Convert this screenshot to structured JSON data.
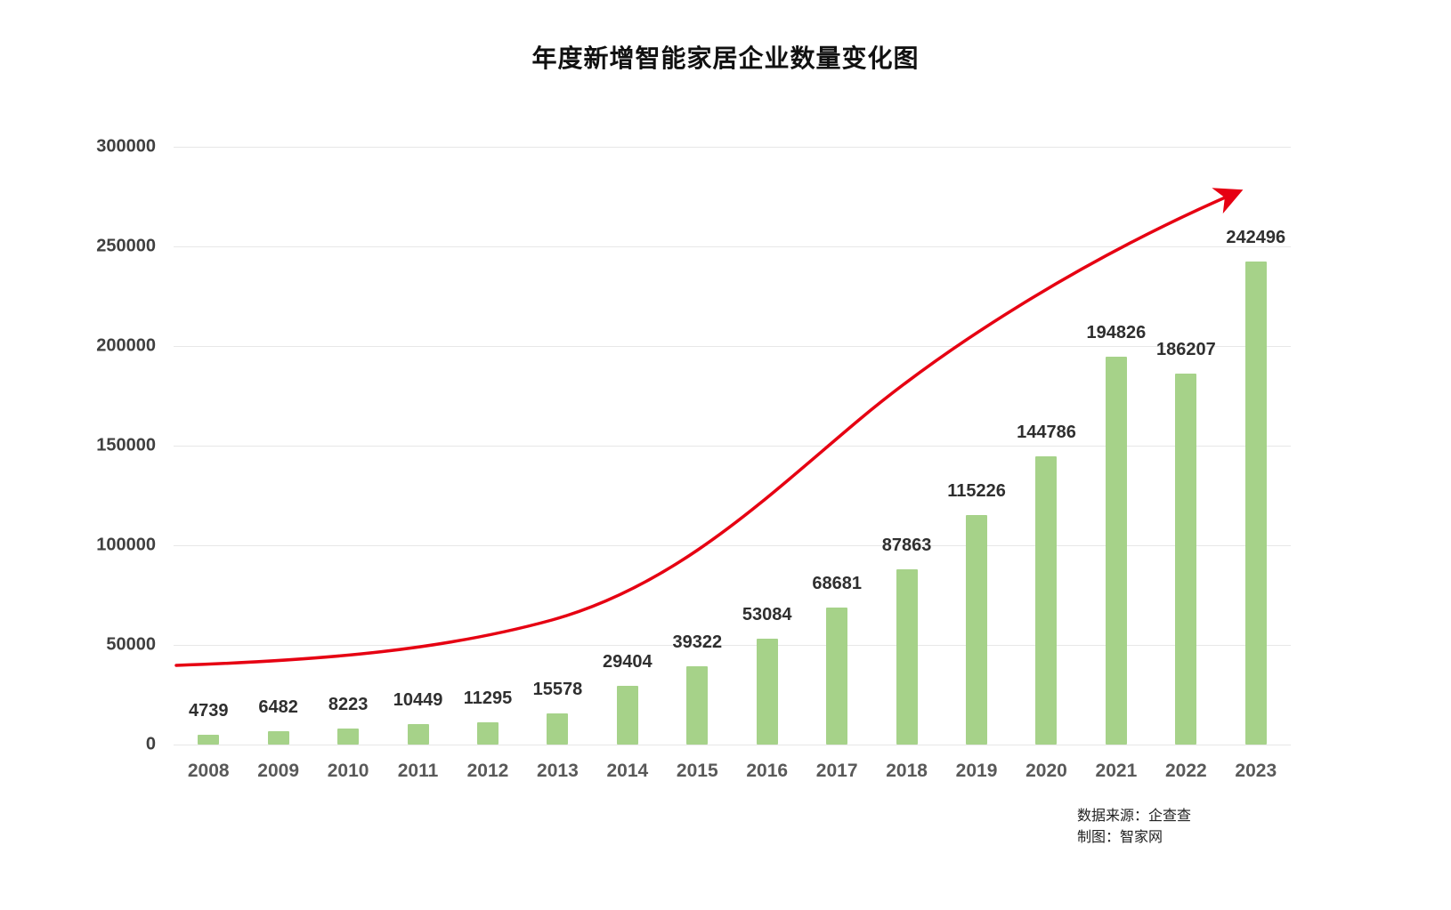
{
  "title": "年度新增智能家居企业数量变化图",
  "source": {
    "line1": "数据来源：企查查",
    "line2": "制图：智家网"
  },
  "colors": {
    "bar": "#a6d289",
    "trend": "#e60012",
    "grid": "#e7e7e7",
    "axis_text": "#595959",
    "value_text": "#2f2f2f"
  },
  "chart_data": {
    "type": "bar",
    "title": "年度新增智能家居企业数量变化图",
    "categories": [
      "2008",
      "2009",
      "2010",
      "2011",
      "2012",
      "2013",
      "2014",
      "2015",
      "2016",
      "2017",
      "2018",
      "2019",
      "2020",
      "2021",
      "2022",
      "2023"
    ],
    "values": [
      4739,
      6482,
      8223,
      10449,
      11295,
      15578,
      29404,
      39322,
      53084,
      68681,
      87863,
      115226,
      144786,
      194826,
      186207,
      242496
    ],
    "xlabel": "",
    "ylabel": "",
    "ylim": [
      0,
      300000
    ],
    "ytick_step": 50000,
    "ytick_labels": [
      "0",
      "50000",
      "100000",
      "150000",
      "200000",
      "250000",
      "300000"
    ],
    "grid": true,
    "legend": false,
    "bar_color": "#a6d289",
    "annotations": [
      "red smoothed exponential trend arrow rising from lower-left to upper-right"
    ]
  }
}
